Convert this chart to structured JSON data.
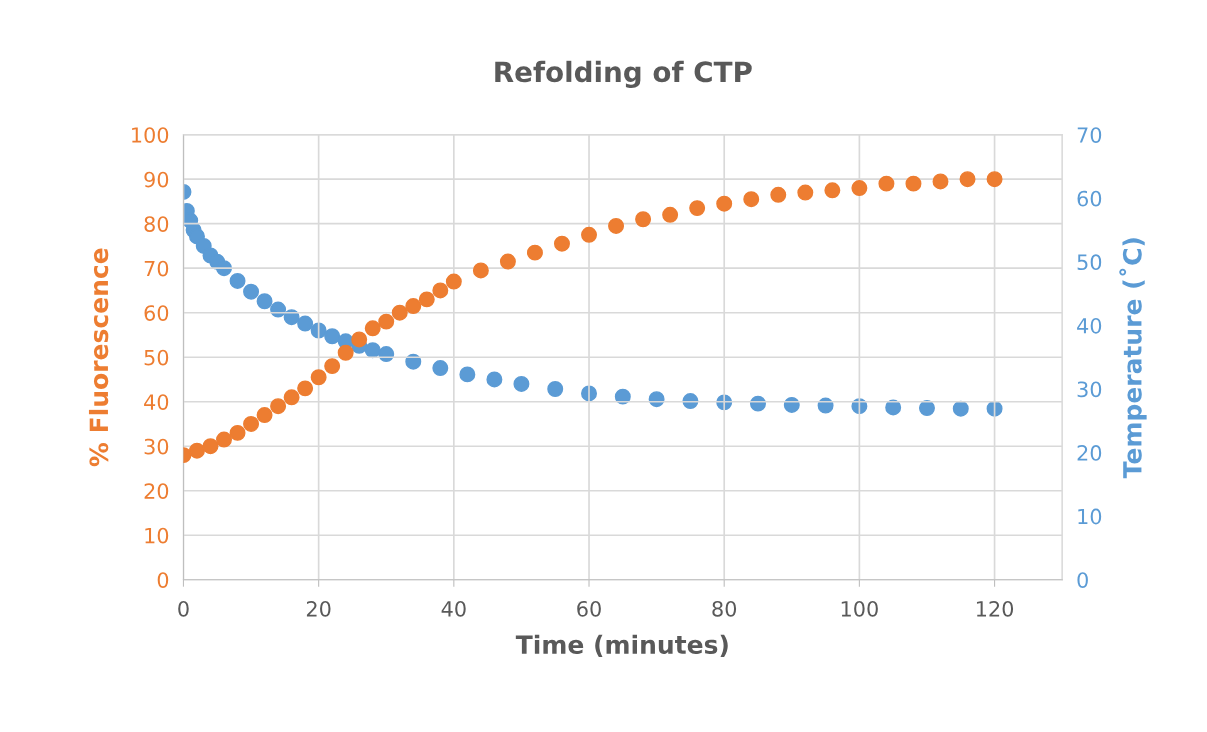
{
  "chart_data": {
    "type": "scatter",
    "title": "Refolding of CTP",
    "xlabel": "Time (minutes)",
    "ylabel": "% Fluorescence",
    "y2label": "Temperature (˚C)",
    "xlim": [
      0,
      130
    ],
    "xticks": [
      0,
      20,
      40,
      60,
      80,
      100,
      120
    ],
    "ylim": [
      0,
      100
    ],
    "yticks": [
      0,
      10,
      20,
      30,
      40,
      50,
      60,
      70,
      80,
      90,
      100
    ],
    "y2lim": [
      0,
      70
    ],
    "y2ticks": [
      0,
      10,
      20,
      30,
      40,
      50,
      60,
      70
    ],
    "grid": true,
    "legend": false,
    "marker": "circle",
    "series": [
      {
        "color": "#ed7d31",
        "x": [
          0,
          2,
          4,
          6,
          8,
          10,
          12,
          14,
          16,
          18,
          20,
          22,
          24,
          26,
          28,
          30,
          32,
          34,
          36,
          38,
          40,
          44,
          48,
          52,
          56,
          60,
          64,
          68,
          72,
          76,
          80,
          84,
          88,
          92,
          96,
          100,
          104,
          108,
          112,
          116,
          120
        ],
        "values": [
          28,
          29,
          30,
          31.5,
          33,
          35,
          37,
          39,
          41,
          43,
          45.5,
          48,
          51,
          54,
          56.5,
          58,
          60,
          61.5,
          63,
          65,
          67,
          69.5,
          71.5,
          73.5,
          75.5,
          77.5,
          79.5,
          81,
          82,
          83.5,
          84.5,
          85.5,
          86.5,
          87,
          87.5,
          88,
          89,
          89,
          89.5,
          90,
          90
        ]
      },
      {
        "color": "#5b9bd5",
        "axis": "y2",
        "x": [
          0,
          0.5,
          1,
          1.5,
          2,
          3,
          4,
          5,
          6,
          8,
          10,
          12,
          14,
          16,
          18,
          20,
          22,
          24,
          26,
          28,
          30,
          34,
          38,
          42,
          46,
          50,
          55,
          60,
          65,
          70,
          75,
          80,
          85,
          90,
          95,
          100,
          105,
          110,
          115,
          120
        ],
        "values": [
          61,
          58,
          56.5,
          55,
          54,
          52.5,
          51,
          50,
          49,
          47,
          45.3,
          43.8,
          42.5,
          41.3,
          40.3,
          39.2,
          38.3,
          37.5,
          36.8,
          36.1,
          35.5,
          34.3,
          33.3,
          32.3,
          31.5,
          30.8,
          30,
          29.3,
          28.8,
          28.4,
          28.1,
          27.9,
          27.7,
          27.5,
          27.4,
          27.3,
          27.1,
          27,
          26.9,
          26.9
        ]
      }
    ]
  }
}
